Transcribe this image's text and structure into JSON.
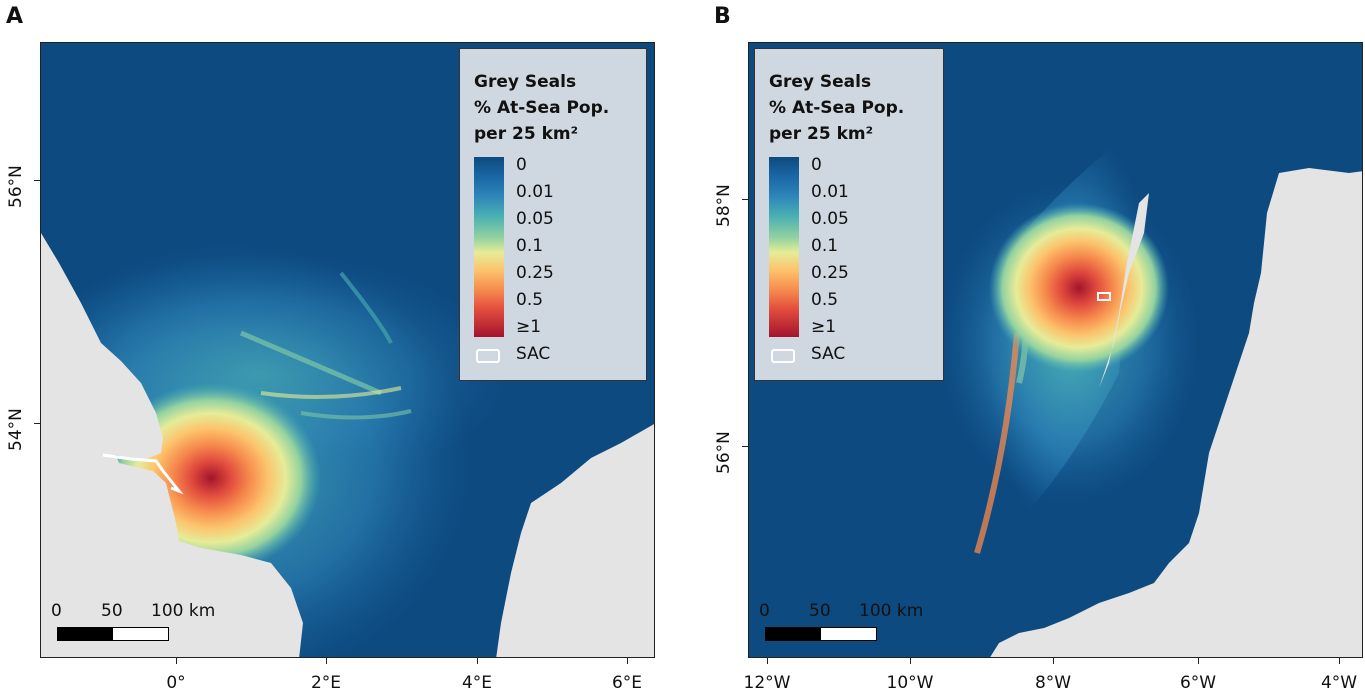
{
  "panels": [
    {
      "letter": "A",
      "xticks": [
        "0°",
        "2°E",
        "4°E",
        "6°E"
      ],
      "yticks": [
        "56°N",
        "54°N"
      ],
      "legend": {
        "title_lines": [
          "Grey Seals",
          "% At-Sea Pop.",
          "per 25 km²"
        ],
        "levels": [
          "0",
          "0.01",
          "0.05",
          "0.1",
          "0.25",
          "0.5",
          "≥1"
        ],
        "sac_label": "SAC"
      },
      "scale": {
        "labels": [
          "0",
          "50",
          "100 km"
        ]
      }
    },
    {
      "letter": "B",
      "xticks": [
        "12°W",
        "10°W",
        "8°W",
        "6°W",
        "4°W"
      ],
      "yticks": [
        "58°N",
        "56°N"
      ],
      "legend": {
        "title_lines": [
          "Grey Seals",
          "% At-Sea Pop.",
          "per 25 km²"
        ],
        "levels": [
          "0",
          "0.01",
          "0.05",
          "0.1",
          "0.25",
          "0.5",
          "≥1"
        ],
        "sac_label": "SAC"
      },
      "scale": {
        "labels": [
          "0",
          "50",
          "100 km"
        ]
      }
    }
  ],
  "colors": {
    "sea": "#0d4a80",
    "land": "#e4e4e4",
    "sac_outline": "#ffffff"
  }
}
